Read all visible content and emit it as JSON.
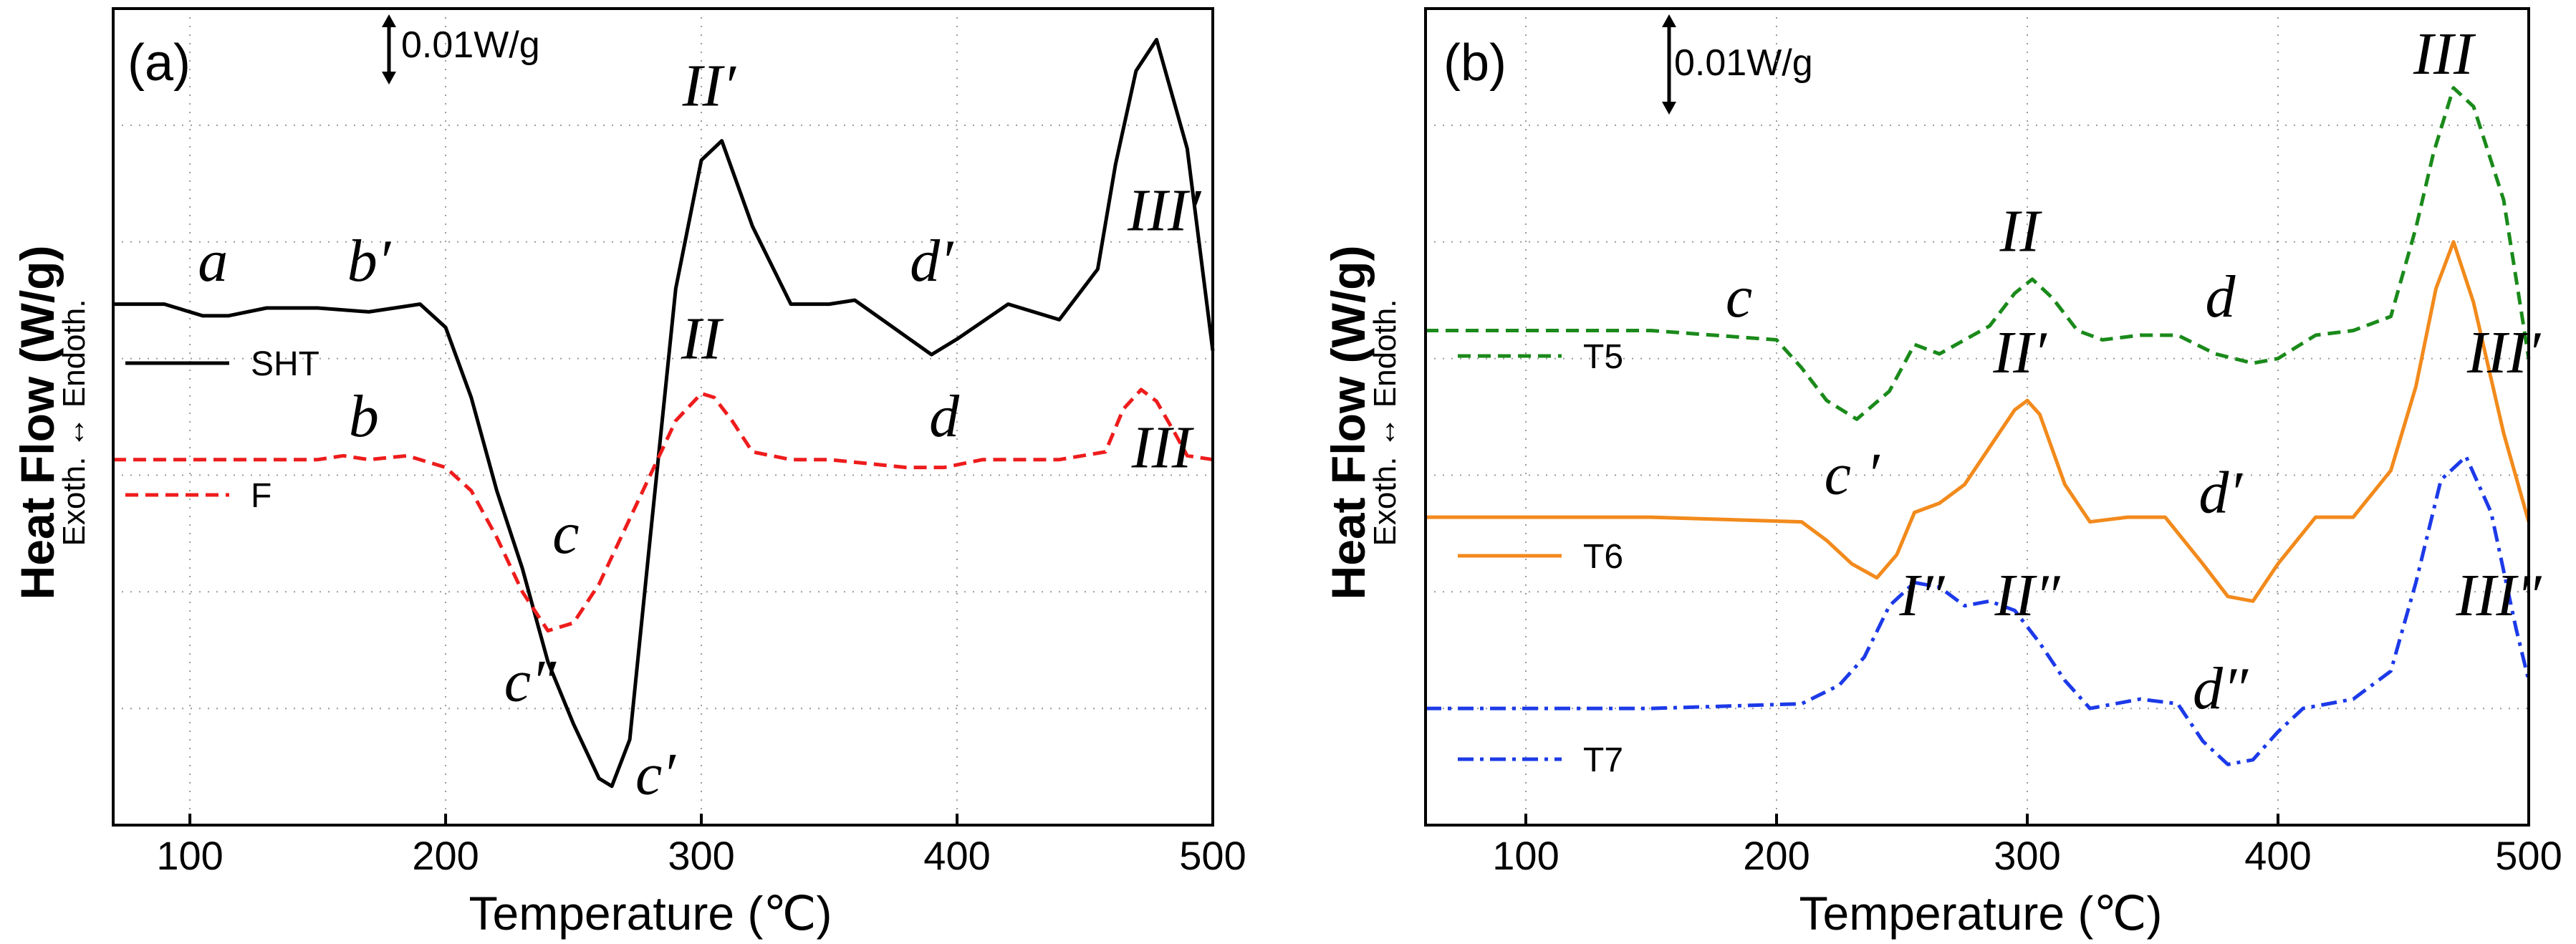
{
  "chart_data": [
    {
      "type": "line",
      "panel_label": "(a)",
      "xlabel": "Temperature (℃)",
      "ylabel": "Heat Flow (W/g)",
      "ylabel_sub": "Exoth. ↔ Endoth.",
      "scale_bar_label": "0.01W/g",
      "xlim": [
        70,
        500
      ],
      "xticks": [
        100,
        200,
        300,
        400,
        500
      ],
      "grid": true,
      "legend_position": "left",
      "series": [
        {
          "name": "SHT",
          "color": "#000000",
          "dash": "solid",
          "x": [
            70,
            90,
            105,
            115,
            130,
            150,
            170,
            190,
            200,
            210,
            220,
            230,
            240,
            250,
            260,
            265,
            272,
            280,
            290,
            300,
            308,
            320,
            335,
            350,
            360,
            375,
            390,
            400,
            420,
            440,
            455,
            462,
            470,
            478,
            490,
            500
          ],
          "y": [
            0.0,
            0.0,
            -0.0015,
            -0.0015,
            -0.0005,
            -0.0005,
            -0.001,
            0.0,
            -0.003,
            -0.012,
            -0.024,
            -0.034,
            -0.046,
            -0.054,
            -0.061,
            -0.062,
            -0.056,
            -0.03,
            0.002,
            0.0185,
            0.021,
            0.01,
            0.0,
            0.0,
            0.0005,
            -0.003,
            -0.0065,
            -0.0045,
            0.0,
            -0.002,
            0.0045,
            0.018,
            0.03,
            0.034,
            0.02,
            -0.006
          ]
        },
        {
          "name": "F",
          "color": "#ee1c1c",
          "dash": "dashed",
          "x": [
            70,
            100,
            150,
            160,
            170,
            185,
            200,
            210,
            220,
            230,
            240,
            250,
            260,
            270,
            280,
            290,
            300,
            305,
            312,
            320,
            335,
            350,
            380,
            395,
            410,
            440,
            458,
            465,
            472,
            478,
            485,
            490,
            500
          ],
          "y": [
            -0.02,
            -0.02,
            -0.02,
            -0.0195,
            -0.02,
            -0.0195,
            -0.021,
            -0.024,
            -0.03,
            -0.037,
            -0.042,
            -0.041,
            -0.036,
            -0.029,
            -0.022,
            -0.015,
            -0.0115,
            -0.012,
            -0.015,
            -0.019,
            -0.02,
            -0.02,
            -0.021,
            -0.021,
            -0.02,
            -0.02,
            -0.019,
            -0.0135,
            -0.011,
            -0.0125,
            -0.0165,
            -0.0195,
            -0.02
          ]
        }
      ],
      "annotations": [
        {
          "text": "a",
          "x": 109,
          "y": 0.003
        },
        {
          "text": "b′",
          "x": 170,
          "y": 0.003
        },
        {
          "text": "II′",
          "x": 303,
          "y": 0.0255
        },
        {
          "text": "d′",
          "x": 390,
          "y": 0.003
        },
        {
          "text": "III′",
          "x": 481,
          "y": 0.0095
        },
        {
          "text": "II",
          "x": 300,
          "y": -0.007
        },
        {
          "text": "b",
          "x": 168,
          "y": -0.017
        },
        {
          "text": "d",
          "x": 395,
          "y": -0.017
        },
        {
          "text": "III",
          "x": 480,
          "y": -0.021
        },
        {
          "text": "c",
          "x": 247,
          "y": -0.032
        },
        {
          "text": "c″",
          "x": 233,
          "y": -0.051
        },
        {
          "text": "c′",
          "x": 282,
          "y": -0.063
        }
      ]
    },
    {
      "type": "line",
      "panel_label": "(b)",
      "xlabel": "Temperature (℃)",
      "ylabel": "Heat Flow (W/g)",
      "ylabel_sub": "Exoth. ↔ Endoth.",
      "scale_bar_label": "0.01W/g",
      "xlim": [
        60,
        500
      ],
      "xticks": [
        100,
        200,
        300,
        400,
        500
      ],
      "grid": true,
      "legend_position": "left",
      "series": [
        {
          "name": "T5",
          "color": "#1a8a1a",
          "dash": "dashed",
          "x": [
            60,
            150,
            200,
            210,
            220,
            232,
            245,
            255,
            265,
            275,
            285,
            295,
            302,
            310,
            320,
            330,
            345,
            360,
            375,
            390,
            400,
            415,
            430,
            445,
            455,
            462,
            470,
            478,
            490,
            500
          ],
          "y": [
            0.0,
            0.0,
            -0.001,
            -0.004,
            -0.0075,
            -0.0095,
            -0.0065,
            -0.0015,
            -0.0025,
            -0.001,
            0.0005,
            0.004,
            0.0055,
            0.0035,
            0.0,
            -0.001,
            -0.0005,
            -0.0005,
            -0.0025,
            -0.0035,
            -0.003,
            -0.0005,
            0.0,
            0.0015,
            0.011,
            0.019,
            0.026,
            0.024,
            0.014,
            -0.003
          ]
        },
        {
          "name": "T6",
          "color": "#f28a1c",
          "dash": "solid",
          "x": [
            60,
            150,
            210,
            220,
            230,
            240,
            248,
            255,
            265,
            275,
            285,
            295,
            300,
            305,
            315,
            325,
            340,
            355,
            370,
            380,
            390,
            400,
            415,
            430,
            445,
            455,
            463,
            470,
            478,
            490,
            500
          ],
          "y": [
            -0.02,
            -0.02,
            -0.0205,
            -0.0225,
            -0.025,
            -0.0265,
            -0.024,
            -0.0195,
            -0.0185,
            -0.0165,
            -0.0125,
            -0.0085,
            -0.0075,
            -0.009,
            -0.0165,
            -0.0205,
            -0.02,
            -0.02,
            -0.025,
            -0.0285,
            -0.029,
            -0.025,
            -0.02,
            -0.02,
            -0.015,
            -0.006,
            0.0045,
            0.0095,
            0.003,
            -0.011,
            -0.0205
          ]
        },
        {
          "name": "T7",
          "color": "#1c3ae8",
          "dash": "dashdot",
          "x": [
            60,
            150,
            210,
            225,
            235,
            245,
            255,
            265,
            275,
            285,
            295,
            305,
            315,
            325,
            345,
            360,
            370,
            380,
            390,
            400,
            410,
            430,
            445,
            455,
            465,
            475,
            485,
            495,
            500
          ],
          "y": [
            -0.0405,
            -0.0405,
            -0.04,
            -0.038,
            -0.035,
            -0.0295,
            -0.027,
            -0.0275,
            -0.0295,
            -0.029,
            -0.03,
            -0.0335,
            -0.0375,
            -0.0405,
            -0.0395,
            -0.04,
            -0.044,
            -0.0465,
            -0.046,
            -0.043,
            -0.0405,
            -0.0395,
            -0.0365,
            -0.027,
            -0.016,
            -0.0135,
            -0.0195,
            -0.032,
            -0.0375
          ]
        }
      ],
      "annotations": [
        {
          "text": "III",
          "x": 466,
          "y": 0.0275
        },
        {
          "text": "II",
          "x": 297,
          "y": 0.0085
        },
        {
          "text": "c",
          "x": 185,
          "y": 0.0015
        },
        {
          "text": "d",
          "x": 377,
          "y": 0.0015
        },
        {
          "text": "II′",
          "x": 297,
          "y": -0.0045
        },
        {
          "text": "III′",
          "x": 490,
          "y": -0.0045
        },
        {
          "text": "c ′",
          "x": 230,
          "y": -0.0175
        },
        {
          "text": "d′",
          "x": 377,
          "y": -0.0195
        },
        {
          "text": "I″",
          "x": 258,
          "y": -0.0305
        },
        {
          "text": "II″",
          "x": 300,
          "y": -0.0305
        },
        {
          "text": "d″",
          "x": 377,
          "y": -0.0405
        },
        {
          "text": "III″",
          "x": 488,
          "y": -0.0305
        }
      ]
    }
  ]
}
